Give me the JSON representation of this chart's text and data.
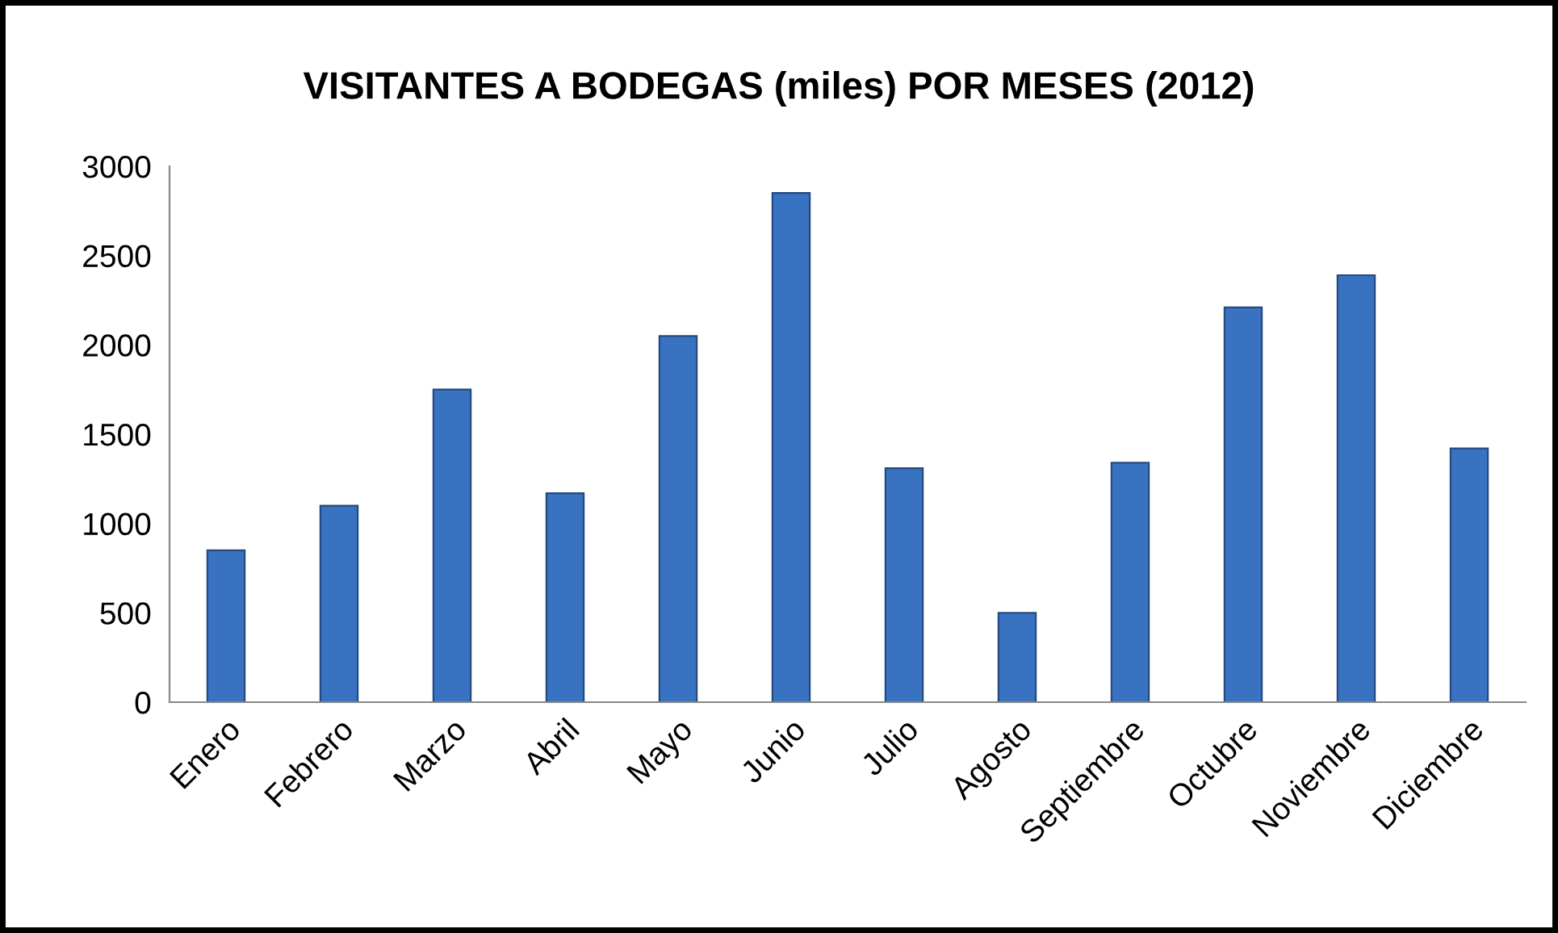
{
  "chart_data": {
    "type": "bar",
    "title": "VISITANTES A BODEGAS (miles) POR MESES (2012)",
    "categories": [
      "Enero",
      "Febrero",
      "Marzo",
      "Abril",
      "Mayo",
      "Junio",
      "Julio",
      "Agosto",
      "Septiembre",
      "Octubre",
      "Noviembre",
      "Diciembre"
    ],
    "values": [
      850,
      1100,
      1750,
      1170,
      2050,
      2850,
      1310,
      500,
      1340,
      2210,
      2390,
      1420
    ],
    "color": "#3a72c2",
    "ylim": [
      0,
      3000
    ],
    "yticks": [
      0,
      500,
      1000,
      1500,
      2000,
      2500,
      3000
    ],
    "grid": false,
    "legend": false
  }
}
